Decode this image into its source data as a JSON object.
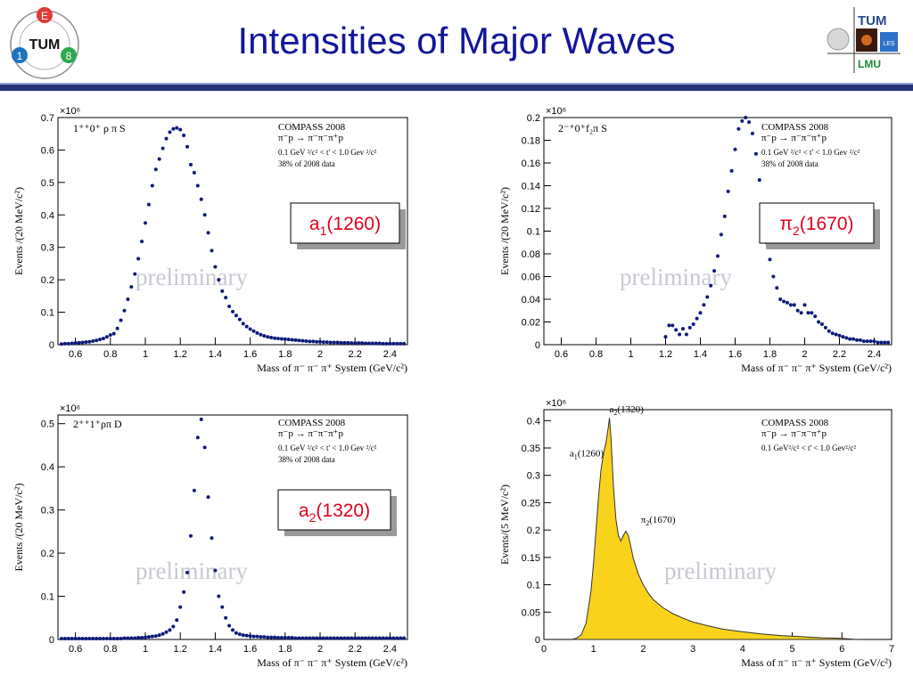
{
  "page": {
    "title": "Intensities of Major Waves",
    "logo_left": {
      "letters": [
        "E",
        "1",
        "8"
      ],
      "center": "TUM"
    },
    "logo_right": {
      "tum": "TUM",
      "lmu": "LMU",
      "small": "LES"
    }
  },
  "chart_data": [
    {
      "type": "scatter",
      "wave": "1⁺⁺0⁺ ρ π S",
      "exponent": "×10⁶",
      "ylabel": "Events /(20 MeV/c²)",
      "xlabel": "Mass of π⁻ π⁻ π⁺ System (GeV/c²)",
      "info": [
        "COMPASS 2008",
        "π⁻p → π⁻π⁻π⁺p",
        "0.1 GeV ²/c² < t' < 1.0 Gev ²/c²",
        "38% of 2008 data"
      ],
      "resonance": {
        "base": "a",
        "sub": "1",
        "mass": "(1260)"
      },
      "watermark": "preliminary",
      "xlim": [
        0.5,
        2.5
      ],
      "ylim": [
        0,
        0.7
      ],
      "xticks": [
        0.6,
        0.8,
        1,
        1.2,
        1.4,
        1.6,
        1.8,
        2,
        2.2,
        2.4
      ],
      "yticks": [
        0,
        0.1,
        0.2,
        0.3,
        0.4,
        0.5,
        0.6,
        0.7
      ],
      "x": [
        0.52,
        0.54,
        0.56,
        0.58,
        0.6,
        0.62,
        0.64,
        0.66,
        0.68,
        0.7,
        0.72,
        0.74,
        0.76,
        0.78,
        0.8,
        0.82,
        0.84,
        0.86,
        0.88,
        0.9,
        0.92,
        0.94,
        0.96,
        0.98,
        1.0,
        1.02,
        1.04,
        1.06,
        1.08,
        1.1,
        1.12,
        1.14,
        1.16,
        1.18,
        1.2,
        1.22,
        1.24,
        1.26,
        1.28,
        1.3,
        1.32,
        1.34,
        1.36,
        1.38,
        1.4,
        1.42,
        1.44,
        1.46,
        1.48,
        1.5,
        1.52,
        1.54,
        1.56,
        1.58,
        1.6,
        1.62,
        1.64,
        1.66,
        1.68,
        1.7,
        1.72,
        1.74,
        1.76,
        1.78,
        1.8,
        1.82,
        1.84,
        1.86,
        1.88,
        1.9,
        1.92,
        1.94,
        1.96,
        1.98,
        2.0,
        2.02,
        2.04,
        2.06,
        2.08,
        2.1,
        2.12,
        2.14,
        2.16,
        2.18,
        2.2,
        2.22,
        2.24,
        2.26,
        2.28,
        2.3,
        2.32,
        2.34,
        2.36,
        2.38,
        2.4,
        2.42,
        2.44,
        2.46,
        2.48
      ],
      "y": [
        0.002,
        0.003,
        0.003,
        0.004,
        0.005,
        0.006,
        0.007,
        0.008,
        0.009,
        0.011,
        0.013,
        0.016,
        0.019,
        0.024,
        0.03,
        0.034,
        0.05,
        0.075,
        0.105,
        0.14,
        0.178,
        0.218,
        0.265,
        0.318,
        0.375,
        0.432,
        0.49,
        0.54,
        0.572,
        0.605,
        0.635,
        0.655,
        0.665,
        0.668,
        0.663,
        0.645,
        0.61,
        0.555,
        0.53,
        0.49,
        0.448,
        0.4,
        0.345,
        0.29,
        0.24,
        0.2,
        0.165,
        0.145,
        0.118,
        0.102,
        0.09,
        0.078,
        0.065,
        0.056,
        0.048,
        0.042,
        0.036,
        0.031,
        0.027,
        0.024,
        0.022,
        0.02,
        0.019,
        0.018,
        0.017,
        0.016,
        0.015,
        0.014,
        0.013,
        0.012,
        0.011,
        0.01,
        0.01,
        0.009,
        0.009,
        0.008,
        0.008,
        0.007,
        0.007,
        0.007,
        0.006,
        0.006,
        0.006,
        0.005,
        0.005,
        0.005,
        0.005,
        0.004,
        0.004,
        0.004,
        0.004,
        0.004,
        0.003,
        0.003,
        0.003,
        0.003,
        0.003,
        0.003,
        0.003
      ]
    },
    {
      "type": "scatter",
      "wave": "2⁻⁺0⁺f₂π S",
      "exponent": "×10⁶",
      "ylabel": "Events /(20 MeV/c²)",
      "xlabel": "Mass of π⁻ π⁻ π⁺ System (GeV/c²)",
      "info": [
        "COMPASS 2008",
        "π⁻p → π⁻π⁻π⁺p",
        "0.1 GeV ²/c² < t' < 1.0 Gev ²/c²",
        "38% of 2008 data"
      ],
      "resonance": {
        "base": "π",
        "sub": "2",
        "mass": "(1670)"
      },
      "watermark": "preliminary",
      "xlim": [
        0.5,
        2.5
      ],
      "ylim": [
        0,
        0.2
      ],
      "xticks": [
        0.6,
        0.8,
        1,
        1.2,
        1.4,
        1.6,
        1.8,
        2,
        2.2,
        2.4
      ],
      "yticks": [
        0,
        0.02,
        0.04,
        0.06,
        0.08,
        0.1,
        0.12,
        0.14,
        0.16,
        0.18,
        0.2
      ],
      "x": [
        1.2,
        1.22,
        1.24,
        1.26,
        1.28,
        1.3,
        1.32,
        1.34,
        1.36,
        1.38,
        1.4,
        1.42,
        1.44,
        1.46,
        1.48,
        1.5,
        1.52,
        1.54,
        1.56,
        1.58,
        1.6,
        1.62,
        1.64,
        1.66,
        1.68,
        1.7,
        1.72,
        1.74,
        1.76,
        1.78,
        1.8,
        1.82,
        1.84,
        1.86,
        1.88,
        1.9,
        1.92,
        1.94,
        1.96,
        1.98,
        2.0,
        2.02,
        2.04,
        2.06,
        2.08,
        2.1,
        2.12,
        2.14,
        2.16,
        2.18,
        2.2,
        2.22,
        2.24,
        2.26,
        2.28,
        2.3,
        2.32,
        2.34,
        2.36,
        2.38,
        2.4,
        2.42,
        2.44,
        2.46,
        2.48
      ],
      "y": [
        0.007,
        0.017,
        0.017,
        0.013,
        0.009,
        0.014,
        0.009,
        0.015,
        0.018,
        0.023,
        0.028,
        0.035,
        0.042,
        0.052,
        0.065,
        0.078,
        0.097,
        0.113,
        0.135,
        0.153,
        0.172,
        0.19,
        0.197,
        0.2,
        0.196,
        0.186,
        0.168,
        0.145,
        0.115,
        0.09,
        0.075,
        0.06,
        0.05,
        0.04,
        0.038,
        0.037,
        0.035,
        0.035,
        0.03,
        0.028,
        0.035,
        0.028,
        0.028,
        0.025,
        0.02,
        0.018,
        0.015,
        0.012,
        0.01,
        0.009,
        0.008,
        0.007,
        0.006,
        0.005,
        0.005,
        0.004,
        0.004,
        0.003,
        0.003,
        0.003,
        0.003,
        0.002,
        0.002,
        0.002,
        0.002
      ]
    },
    {
      "type": "scatter",
      "wave": "2⁺⁺1⁺ρπ D",
      "exponent": "×10⁶",
      "ylabel": "Events /(20 MeV/c²)",
      "xlabel": "Mass of π⁻ π⁻ π⁺ System (GeV/c²)",
      "info": [
        "COMPASS 2008",
        "π⁻p → π⁻π⁻π⁺p",
        "0.1 GeV ²/c² < t' < 1.0 Gev ²/c²",
        "38% of 2008 data"
      ],
      "resonance": {
        "base": "a",
        "sub": "2",
        "mass": "(1320)"
      },
      "watermark": "preliminary",
      "xlim": [
        0.5,
        2.5
      ],
      "ylim": [
        0,
        0.52
      ],
      "xticks": [
        0.6,
        0.8,
        1,
        1.2,
        1.4,
        1.6,
        1.8,
        2,
        2.2,
        2.4
      ],
      "yticks": [
        0,
        0.1,
        0.2,
        0.3,
        0.4,
        0.5
      ],
      "x": [
        0.52,
        0.54,
        0.56,
        0.58,
        0.6,
        0.62,
        0.64,
        0.66,
        0.68,
        0.7,
        0.72,
        0.74,
        0.76,
        0.78,
        0.8,
        0.82,
        0.84,
        0.86,
        0.88,
        0.9,
        0.92,
        0.94,
        0.96,
        0.98,
        1.0,
        1.02,
        1.04,
        1.06,
        1.08,
        1.1,
        1.12,
        1.14,
        1.16,
        1.18,
        1.2,
        1.22,
        1.24,
        1.26,
        1.28,
        1.3,
        1.32,
        1.34,
        1.36,
        1.38,
        1.4,
        1.42,
        1.44,
        1.46,
        1.48,
        1.5,
        1.52,
        1.54,
        1.56,
        1.58,
        1.6,
        1.62,
        1.64,
        1.66,
        1.68,
        1.7,
        1.72,
        1.74,
        1.76,
        1.78,
        1.8,
        1.82,
        1.84,
        1.86,
        1.88,
        1.9,
        1.92,
        1.94,
        1.96,
        1.98,
        2.0,
        2.02,
        2.04,
        2.06,
        2.08,
        2.1,
        2.12,
        2.14,
        2.16,
        2.18,
        2.2,
        2.22,
        2.24,
        2.26,
        2.28,
        2.3,
        2.32,
        2.34,
        2.36,
        2.38,
        2.4,
        2.42,
        2.44,
        2.46,
        2.48
      ],
      "y": [
        0.002,
        0.002,
        0.002,
        0.002,
        0.002,
        0.002,
        0.002,
        0.002,
        0.002,
        0.002,
        0.002,
        0.002,
        0.002,
        0.002,
        0.002,
        0.002,
        0.002,
        0.002,
        0.003,
        0.003,
        0.003,
        0.003,
        0.004,
        0.004,
        0.005,
        0.006,
        0.007,
        0.008,
        0.01,
        0.013,
        0.017,
        0.022,
        0.03,
        0.045,
        0.075,
        0.11,
        0.155,
        0.24,
        0.345,
        0.468,
        0.51,
        0.445,
        0.33,
        0.235,
        0.16,
        0.1,
        0.075,
        0.05,
        0.032,
        0.022,
        0.015,
        0.012,
        0.01,
        0.009,
        0.008,
        0.007,
        0.007,
        0.006,
        0.006,
        0.005,
        0.005,
        0.005,
        0.004,
        0.004,
        0.004,
        0.004,
        0.004,
        0.003,
        0.003,
        0.003,
        0.003,
        0.003,
        0.003,
        0.003,
        0.003,
        0.003,
        0.003,
        0.003,
        0.003,
        0.003,
        0.003,
        0.003,
        0.003,
        0.003,
        0.003,
        0.003,
        0.003,
        0.003,
        0.003,
        0.003,
        0.003,
        0.003,
        0.003,
        0.003,
        0.003,
        0.003,
        0.003,
        0.003,
        0.003
      ]
    },
    {
      "type": "area",
      "exponent": "×10⁶",
      "ylabel": "Events/(5 MeV/c²)",
      "xlabel": "Mass of π⁻ π⁻ π⁺ System (GeV/c²)",
      "info": [
        "COMPASS 2008",
        "π⁻p → π⁻π⁻π⁺p",
        "0.1 GeV²/c² < t' < 1.0 Gev²/c²"
      ],
      "watermark": "preliminary",
      "fill_color": "#f9d21b",
      "xlim": [
        0,
        7
      ],
      "ylim": [
        0,
        0.42
      ],
      "xticks": [
        0,
        1,
        2,
        3,
        4,
        5,
        6,
        7
      ],
      "yticks": [
        0,
        0.05,
        0.1,
        0.15,
        0.2,
        0.25,
        0.3,
        0.35,
        0.4
      ],
      "peaks": [
        {
          "base": "a",
          "sub": "2",
          "mass": "(1320)",
          "x": 1.32,
          "y": 0.405
        },
        {
          "base": "a",
          "sub": "1",
          "mass": "(1260)",
          "x": 1.2,
          "y": 0.315
        },
        {
          "base": "π",
          "sub": "2",
          "mass": "(1670)",
          "x": 1.7,
          "y": 0.2
        }
      ],
      "x": [
        0.55,
        0.65,
        0.75,
        0.85,
        0.95,
        1.0,
        1.05,
        1.1,
        1.15,
        1.2,
        1.25,
        1.3,
        1.32,
        1.35,
        1.4,
        1.45,
        1.5,
        1.55,
        1.6,
        1.65,
        1.7,
        1.75,
        1.8,
        1.9,
        2.0,
        2.1,
        2.2,
        2.4,
        2.6,
        2.8,
        3.0,
        3.3,
        3.6,
        4.0,
        4.4,
        4.8,
        5.2,
        5.6,
        6.0,
        6.3
      ],
      "y": [
        0.0,
        0.002,
        0.008,
        0.03,
        0.09,
        0.14,
        0.2,
        0.26,
        0.31,
        0.34,
        0.36,
        0.39,
        0.405,
        0.37,
        0.28,
        0.22,
        0.19,
        0.18,
        0.19,
        0.198,
        0.19,
        0.17,
        0.148,
        0.12,
        0.1,
        0.085,
        0.073,
        0.058,
        0.047,
        0.039,
        0.032,
        0.025,
        0.019,
        0.014,
        0.01,
        0.007,
        0.005,
        0.003,
        0.002,
        0.0
      ]
    }
  ]
}
